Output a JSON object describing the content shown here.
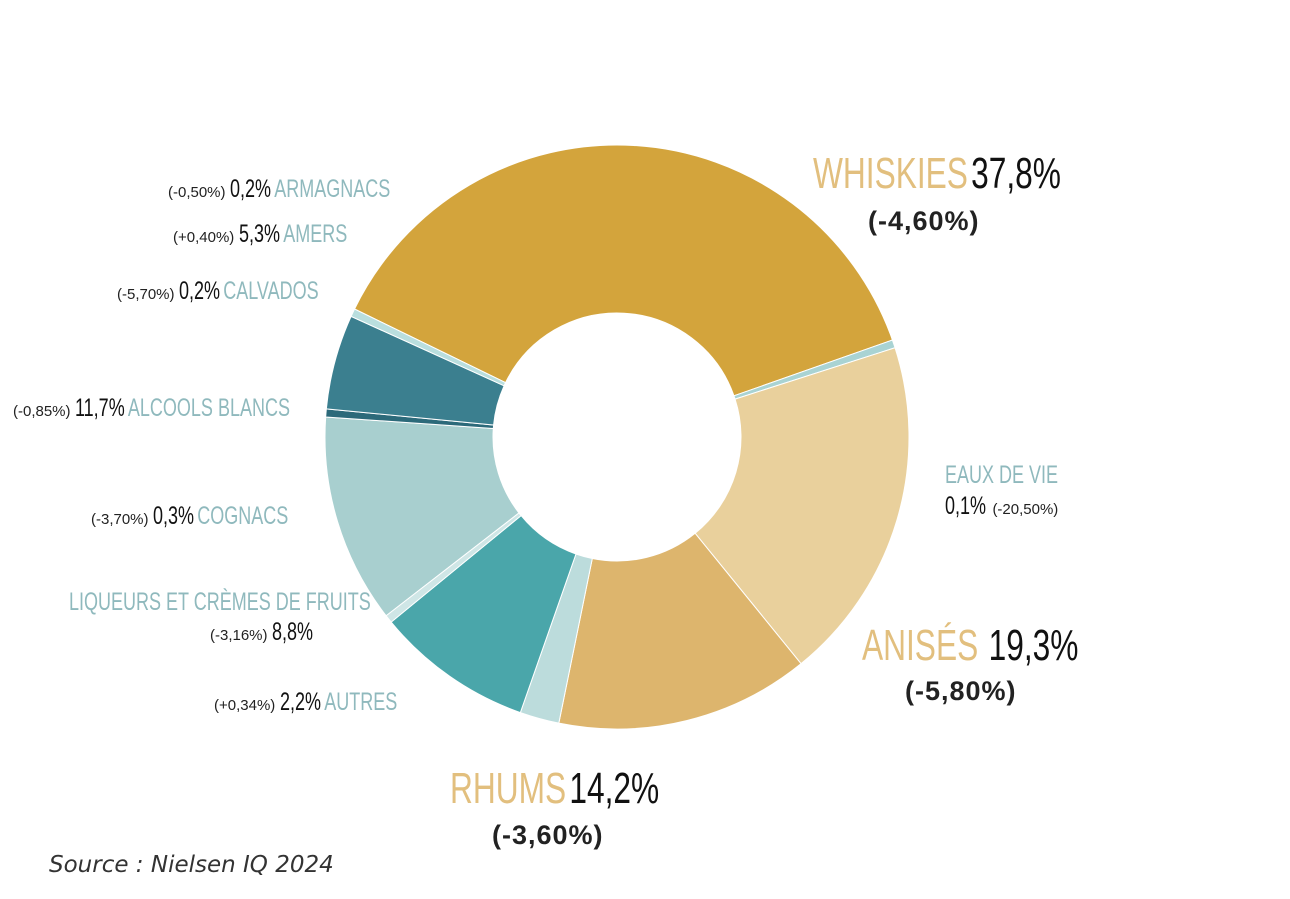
{
  "chart_data": {
    "type": "donut",
    "slices": [
      {
        "name": "WHISKIES",
        "share": 37.8,
        "share_label": "37,8%",
        "change": "(-4,60%)",
        "color": "#d3a43c"
      },
      {
        "name": "EAUX DE VIE",
        "share": 0.1,
        "share_label": "0,1%",
        "change": "(-20,50%)",
        "color": "#a9d3d3"
      },
      {
        "name": "ANISÉS",
        "share": 19.3,
        "share_label": "19,3%",
        "change": "(-5,80%)",
        "color": "#e9d09c"
      },
      {
        "name": "RHUMS",
        "share": 14.2,
        "share_label": "14,2%",
        "change": "(-3,60%)",
        "color": "#ddb56d"
      },
      {
        "name": "AUTRES",
        "share": 2.2,
        "share_label": "2,2%",
        "change": "(+0,34%)",
        "color": "#bcdcdc"
      },
      {
        "name": "LIQUEURS ET CRÈMES DE FRUITS",
        "share": 8.8,
        "share_label": "8,8%",
        "change": "(-3,16%)",
        "color": "#4aa6aa"
      },
      {
        "name": "COGNACS",
        "share": 0.3,
        "share_label": "0,3%",
        "change": "(-3,70%)",
        "color": "#cfe6e6"
      },
      {
        "name": "ALCOOLS BLANCS",
        "share": 11.7,
        "share_label": "11,7%",
        "change": "(-0,85%)",
        "color": "#a8cfcf"
      },
      {
        "name": "CALVADOS",
        "share": 0.2,
        "share_label": "0,2%",
        "change": "(-5,70%)",
        "color": "#2c6a7a"
      },
      {
        "name": "AMERS",
        "share": 5.3,
        "share_label": "5,3%",
        "change": "(+0,40%)",
        "color": "#3b7f8f"
      },
      {
        "name": "ARMAGNACS",
        "share": 0.2,
        "share_label": "0,2%",
        "change": "(-0,50%)",
        "color": "#b9dede"
      }
    ]
  },
  "source": "Source : Nielsen IQ 2024"
}
